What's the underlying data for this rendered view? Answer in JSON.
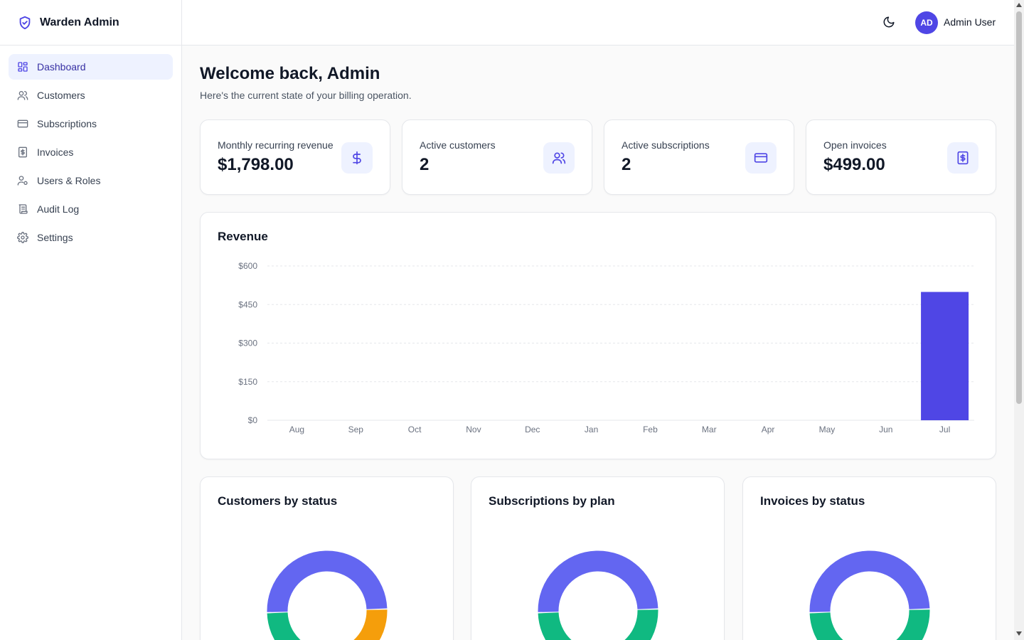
{
  "brand": {
    "name": "Warden Admin",
    "icon": "shield-check-icon"
  },
  "sidebar": {
    "items": [
      {
        "label": "Dashboard",
        "icon": "dashboard-icon",
        "active": true
      },
      {
        "label": "Customers",
        "icon": "users-icon",
        "active": false
      },
      {
        "label": "Subscriptions",
        "icon": "credit-card-icon",
        "active": false
      },
      {
        "label": "Invoices",
        "icon": "invoice-icon",
        "active": false
      },
      {
        "label": "Users & Roles",
        "icon": "user-cog-icon",
        "active": false
      },
      {
        "label": "Audit Log",
        "icon": "scroll-icon",
        "active": false
      },
      {
        "label": "Settings",
        "icon": "gear-icon",
        "active": false
      }
    ]
  },
  "topbar": {
    "theme_icon": "moon-icon",
    "avatar_initials": "AD",
    "user_name": "Admin User"
  },
  "page": {
    "title": "Welcome back, Admin",
    "subtitle": "Here's the current state of your billing operation."
  },
  "stats": [
    {
      "label": "Monthly recurring revenue",
      "value": "$1,798.00",
      "icon": "dollar-icon"
    },
    {
      "label": "Active customers",
      "value": "2",
      "icon": "users-icon"
    },
    {
      "label": "Active subscriptions",
      "value": "2",
      "icon": "credit-card-icon"
    },
    {
      "label": "Open invoices",
      "value": "$499.00",
      "icon": "invoice-icon"
    }
  ],
  "colors": {
    "accent": "#4f46e5",
    "donut_primary": "#6366f1",
    "donut_green": "#10b981",
    "donut_amber": "#f59e0b"
  },
  "revenue_chart": {
    "title": "Revenue"
  },
  "donut_titles": [
    "Customers by status",
    "Subscriptions by plan",
    "Invoices by status"
  ],
  "chart_data": [
    {
      "type": "bar",
      "title": "Revenue",
      "categories": [
        "Aug",
        "Sep",
        "Oct",
        "Nov",
        "Dec",
        "Jan",
        "Feb",
        "Mar",
        "Apr",
        "May",
        "Jun",
        "Jul"
      ],
      "values": [
        0,
        0,
        0,
        0,
        0,
        0,
        0,
        0,
        0,
        0,
        0,
        499
      ],
      "yticks": [
        "$0",
        "$150",
        "$300",
        "$450",
        "$600"
      ],
      "ylim": [
        0,
        600
      ],
      "grid": true,
      "color": "#4f46e5"
    },
    {
      "type": "pie",
      "title": "Customers by status",
      "slices": [
        {
          "value": 50,
          "color": "#6366f1"
        },
        {
          "value": 25,
          "color": "#f59e0b"
        },
        {
          "value": 25,
          "color": "#10b981"
        }
      ]
    },
    {
      "type": "pie",
      "title": "Subscriptions by plan",
      "slices": [
        {
          "value": 50,
          "color": "#6366f1"
        },
        {
          "value": 50,
          "color": "#10b981"
        }
      ]
    },
    {
      "type": "pie",
      "title": "Invoices by status",
      "slices": [
        {
          "value": 50,
          "color": "#6366f1"
        },
        {
          "value": 50,
          "color": "#10b981"
        }
      ]
    }
  ]
}
